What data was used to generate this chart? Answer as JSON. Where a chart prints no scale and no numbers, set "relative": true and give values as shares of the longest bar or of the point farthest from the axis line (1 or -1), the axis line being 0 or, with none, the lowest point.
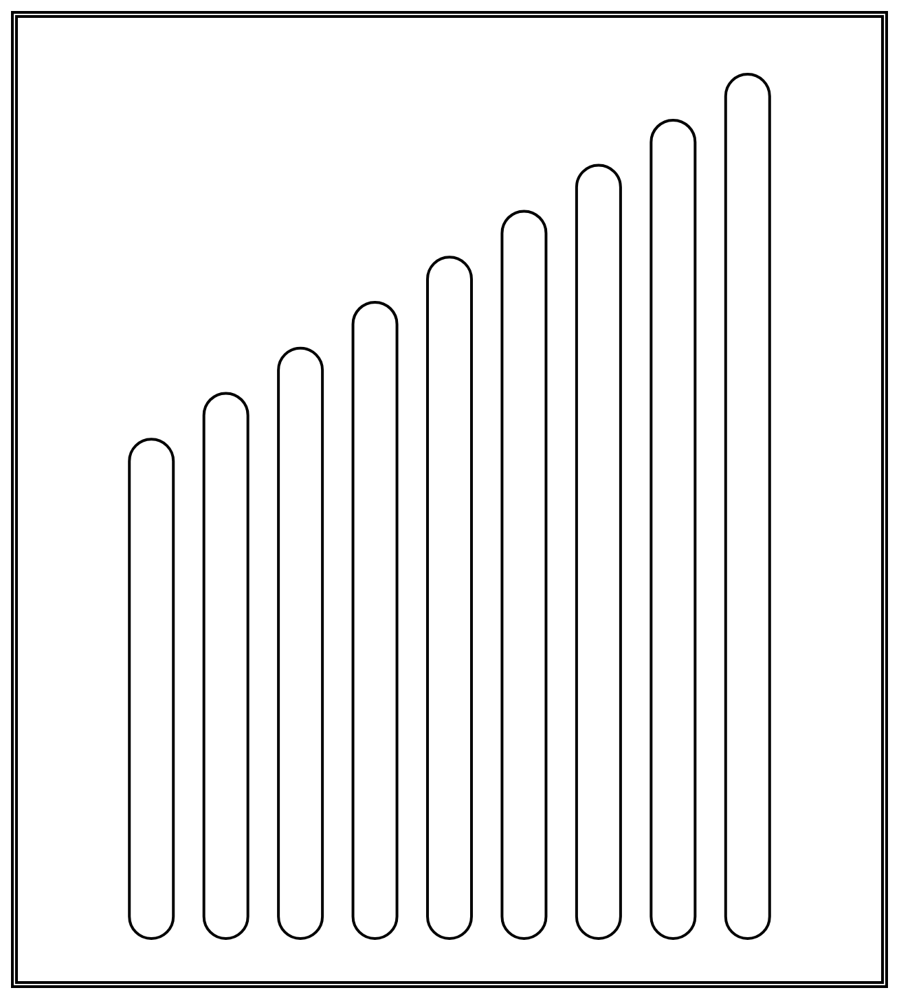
{
  "chart_data": {
    "type": "bar",
    "relative": true,
    "categories": [
      null,
      null,
      null,
      null,
      null,
      null,
      null,
      null,
      null
    ],
    "values": [
      0.579,
      0.632,
      0.684,
      0.737,
      0.789,
      0.842,
      0.895,
      0.947,
      1
    ],
    "color": "#ffffff"
  }
}
